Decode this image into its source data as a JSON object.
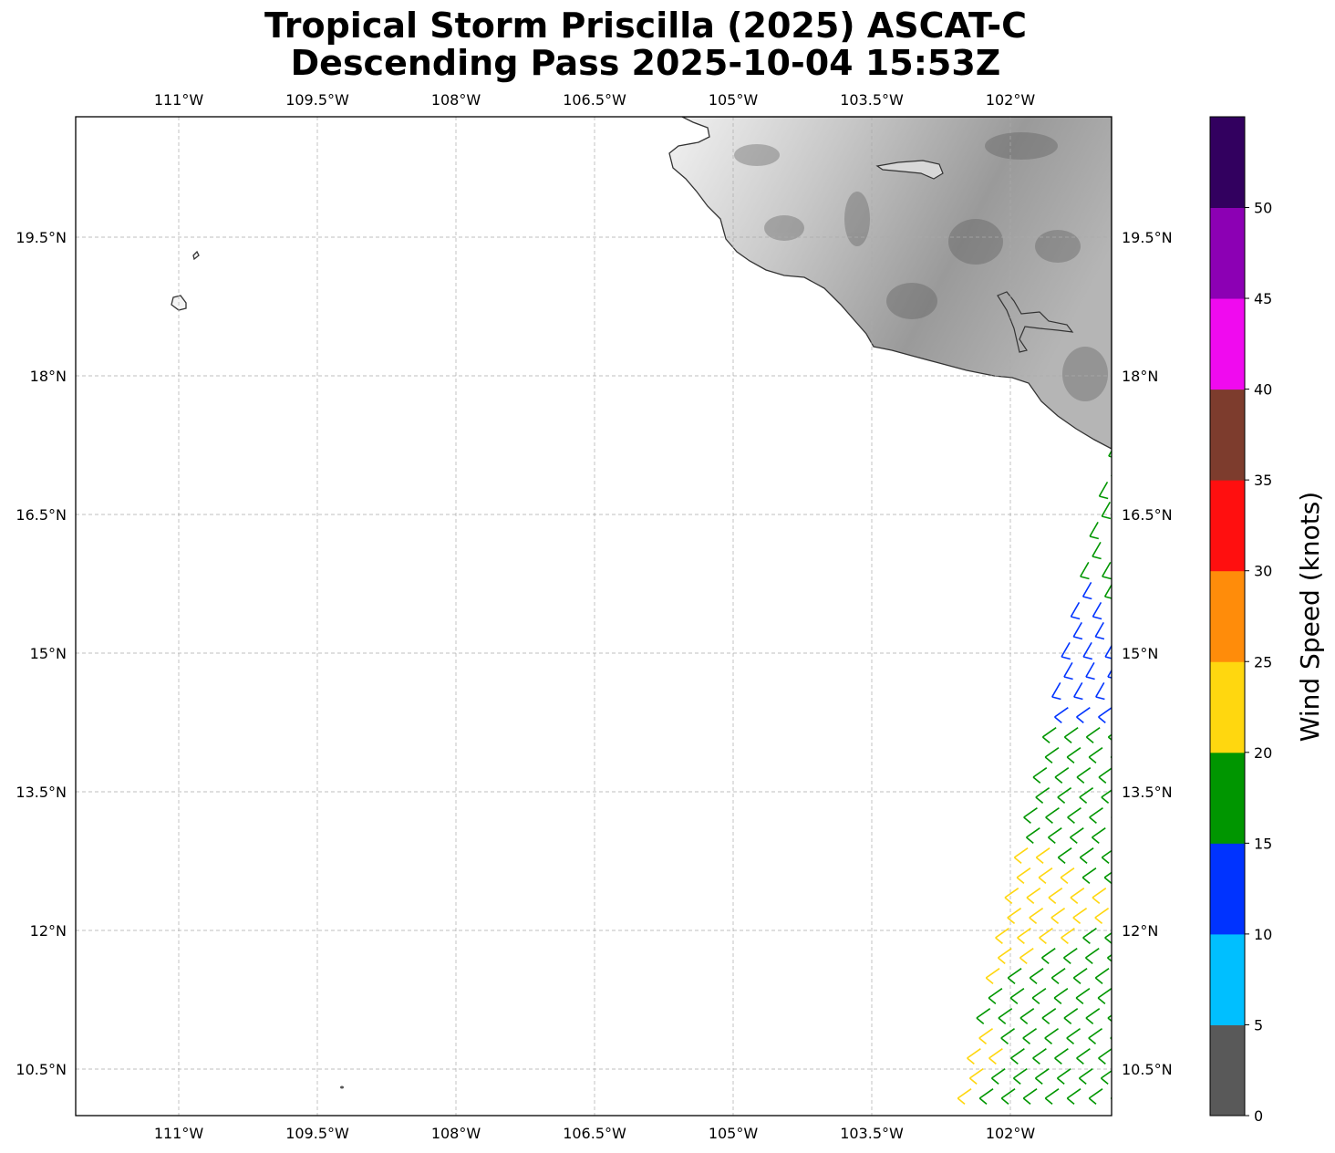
{
  "title": {
    "line1": "Tropical Storm Priscilla (2025) ASCAT-C",
    "line2": "Descending Pass 2025-10-04 15:53Z"
  },
  "map": {
    "lon_labels": [
      "111°W",
      "109.5°W",
      "108°W",
      "106.5°W",
      "105°W",
      "103.5°W",
      "102°W"
    ],
    "lat_labels": [
      "19.5°N",
      "18°N",
      "16.5°N",
      "15°N",
      "13.5°N",
      "12°N",
      "10.5°N"
    ],
    "colors": {
      "land_dark": "#4a4a4a",
      "coast": "#333333",
      "grid": "#aaaaaa"
    }
  },
  "colorbar": {
    "label": "Wind Speed (knots)",
    "ticks": [
      "0",
      "5",
      "10",
      "15",
      "20",
      "25",
      "30",
      "35",
      "40",
      "45",
      "50"
    ],
    "colors": [
      "#595959",
      "#00bfff",
      "#0033ff",
      "#009600",
      "#ffd70f",
      "#ff8c0a",
      "#ff0f0f",
      "#7d3c2d",
      "#f00aef",
      "#8c00b4",
      "#32005f"
    ]
  },
  "wind_barbs": {
    "units": "knots",
    "samples": [
      {
        "lat": 16.9,
        "lon": -101.0,
        "speed": 17
      },
      {
        "lat": 16.4,
        "lon": -101.1,
        "speed": 18
      },
      {
        "lat": 15.9,
        "lon": -101.2,
        "speed": 17
      },
      {
        "lat": 15.4,
        "lon": -101.3,
        "speed": 13
      },
      {
        "lat": 15.0,
        "lon": -101.4,
        "speed": 12
      },
      {
        "lat": 14.5,
        "lon": -101.5,
        "speed": 12
      },
      {
        "lat": 14.0,
        "lon": -101.6,
        "speed": 17
      },
      {
        "lat": 13.5,
        "lon": -101.5,
        "speed": 18
      },
      {
        "lat": 13.0,
        "lon": -101.7,
        "speed": 19
      },
      {
        "lat": 12.7,
        "lon": -101.9,
        "speed": 22
      },
      {
        "lat": 12.2,
        "lon": -102.0,
        "speed": 22
      },
      {
        "lat": 11.8,
        "lon": -102.1,
        "speed": 23
      },
      {
        "lat": 11.4,
        "lon": -101.8,
        "speed": 18
      },
      {
        "lat": 10.9,
        "lon": -102.2,
        "speed": 18
      },
      {
        "lat": 10.7,
        "lon": -102.4,
        "speed": 21
      },
      {
        "lat": 10.3,
        "lon": -101.9,
        "speed": 17
      }
    ]
  }
}
